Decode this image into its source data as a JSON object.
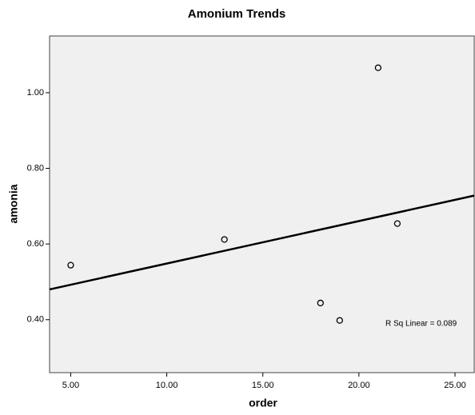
{
  "chart_data": {
    "type": "scatter",
    "title": "Amonium Trends",
    "x_label": "order",
    "y_label": "amonia",
    "x": [
      5,
      13,
      18,
      19,
      21,
      22
    ],
    "values": [
      0.544,
      0.612,
      0.444,
      0.398,
      1.066,
      0.654
    ],
    "xlim": [
      3.9,
      26.0
    ],
    "ylim": [
      0.26,
      1.15
    ],
    "xticks": [
      {
        "value": 5,
        "label": "5.00"
      },
      {
        "value": 10,
        "label": "10.00"
      },
      {
        "value": 15,
        "label": "15.00"
      },
      {
        "value": 20,
        "label": "20.00"
      },
      {
        "value": 25,
        "label": "25.00"
      }
    ],
    "yticks": [
      {
        "value": 0.4,
        "label": "0.40"
      },
      {
        "value": 0.6,
        "label": "0.60"
      },
      {
        "value": 0.8,
        "label": "0.80"
      },
      {
        "value": 1.0,
        "label": "1.00"
      }
    ],
    "fit_line": {
      "x": [
        3.9,
        26.0
      ],
      "y": [
        0.48,
        0.728
      ]
    },
    "annotation": "R Sq Linear = 0.089",
    "plot_background": "#f0f0f0",
    "marker_color": "#000000",
    "line_color": "#000000",
    "grid": false
  }
}
